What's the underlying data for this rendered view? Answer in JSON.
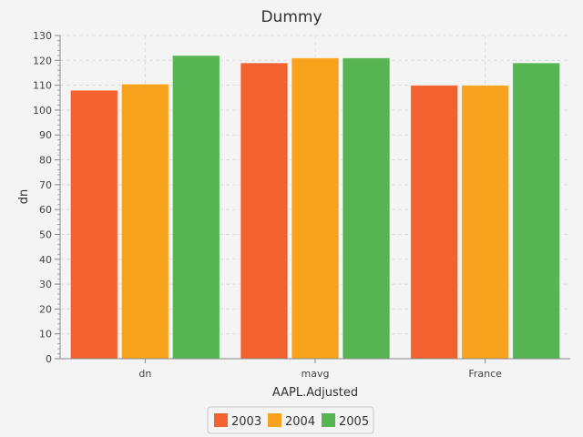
{
  "chart_data": {
    "type": "bar",
    "title": "Dummy",
    "xlabel": "AAPL.Adjusted",
    "ylabel": "dn",
    "categories": [
      "dn",
      "mavg",
      "France"
    ],
    "series": [
      {
        "name": "2003",
        "color": "#f2612e",
        "values": [
          108,
          119,
          110
        ]
      },
      {
        "name": "2004",
        "color": "#f8a31e",
        "values": [
          110.5,
          121,
          110
        ]
      },
      {
        "name": "2005",
        "color": "#56b452",
        "values": [
          122,
          121,
          119
        ]
      }
    ],
    "ylim": [
      0,
      130
    ],
    "yticks": [
      0,
      10,
      20,
      30,
      40,
      50,
      60,
      70,
      80,
      90,
      100,
      110,
      120,
      130
    ],
    "grid": true,
    "legend": "bottom"
  }
}
